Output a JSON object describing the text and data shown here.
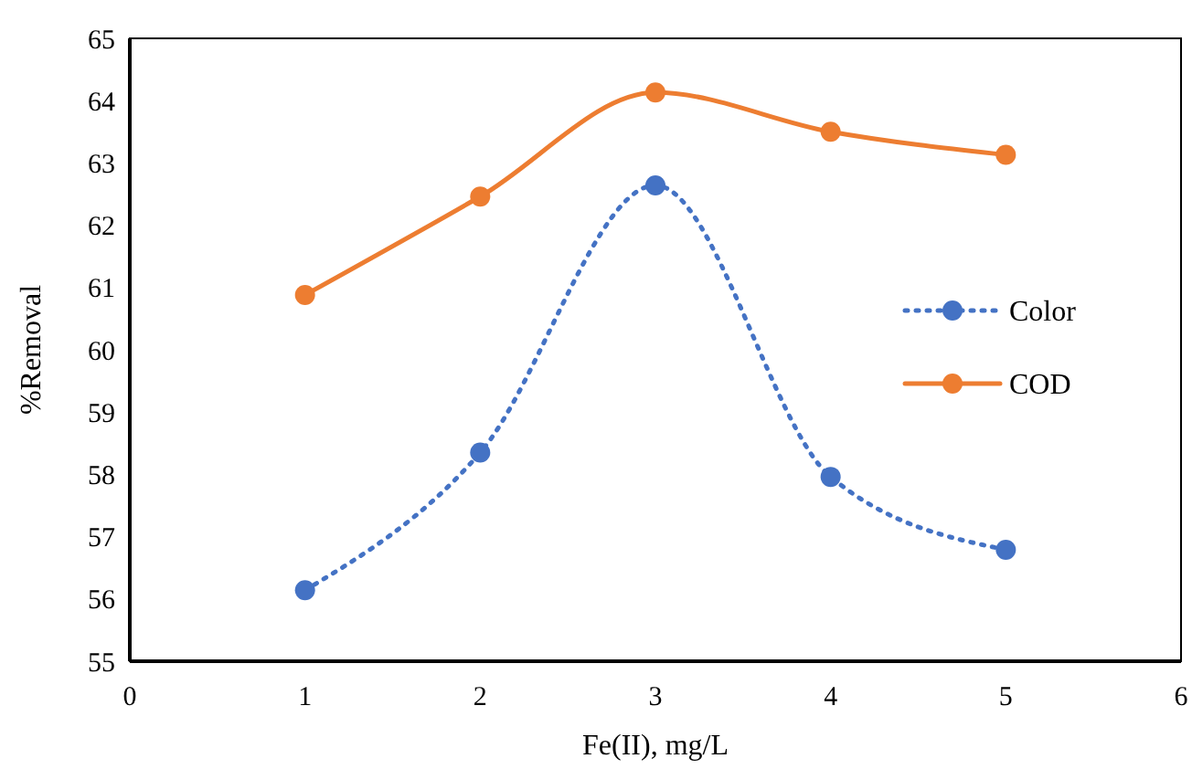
{
  "chart_data": {
    "type": "line",
    "xlabel": "Fe(II), mg/L",
    "ylabel": "%Removal",
    "x": [
      1,
      2,
      3,
      4,
      5
    ],
    "series": [
      {
        "name": "Color",
        "color": "#4472c4",
        "values": [
          56.14,
          58.35,
          62.64,
          57.96,
          56.79
        ],
        "line_style": "dotted"
      },
      {
        "name": "COD",
        "color": "#ed7d31",
        "values": [
          60.88,
          62.46,
          64.13,
          63.5,
          63.13
        ],
        "line_style": "solid"
      }
    ],
    "xlim": [
      0,
      6
    ],
    "xticks": [
      0,
      1,
      2,
      3,
      4,
      5,
      6
    ],
    "ylim": [
      55,
      65
    ],
    "yticks": [
      55,
      56,
      57,
      58,
      59,
      60,
      61,
      62,
      63,
      64,
      65
    ],
    "grid": false,
    "legend": "right",
    "marker": "circle"
  }
}
